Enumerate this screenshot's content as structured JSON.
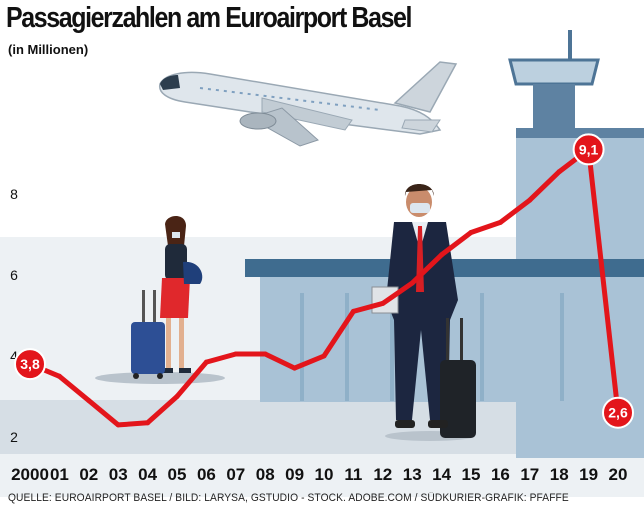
{
  "header": {
    "title": "Passagierzahlen am Euroairport Basel",
    "subtitle": "(in Millionen)"
  },
  "footer": {
    "source": "QUELLE: EUROAIRPORT BASEL / BILD: LARYSA, GSTUDIO - STOCK. ADOBE.COM / SÜDKURIER-GRAFIK: PFAFFE"
  },
  "colors": {
    "line": "#e3151b",
    "label_text": "#ffffff",
    "building": "#a9c2d6",
    "building_dark": "#3f6c8f",
    "ground": "#d6dee5"
  },
  "illustration": {
    "icons": [
      "airplane-icon",
      "control-tower-icon",
      "terminal-building-icon",
      "woman-traveler-icon",
      "man-traveler-icon"
    ]
  },
  "chart_data": {
    "type": "line",
    "title": "Passagierzahlen am Euroairport Basel",
    "ylabel": "(in Millionen)",
    "x": [
      "2000",
      "01",
      "02",
      "03",
      "04",
      "05",
      "06",
      "07",
      "08",
      "09",
      "10",
      "11",
      "12",
      "13",
      "14",
      "15",
      "16",
      "17",
      "18",
      "19",
      "20"
    ],
    "values": [
      3.8,
      3.5,
      2.9,
      2.3,
      2.35,
      3.0,
      3.85,
      4.05,
      4.05,
      3.7,
      4.0,
      5.1,
      5.3,
      5.8,
      6.5,
      7.05,
      7.3,
      7.85,
      8.55,
      9.1,
      2.6
    ],
    "point_labels": [
      {
        "index": 0,
        "text": "3,8"
      },
      {
        "index": 19,
        "text": "9,1"
      },
      {
        "index": 20,
        "text": "2,6"
      }
    ],
    "yticks": [
      "2",
      "4",
      "6",
      "8"
    ],
    "ytick_values": [
      2,
      4,
      6,
      8
    ],
    "ylim": [
      1.5,
      10
    ],
    "grid": false,
    "legend": "none"
  }
}
